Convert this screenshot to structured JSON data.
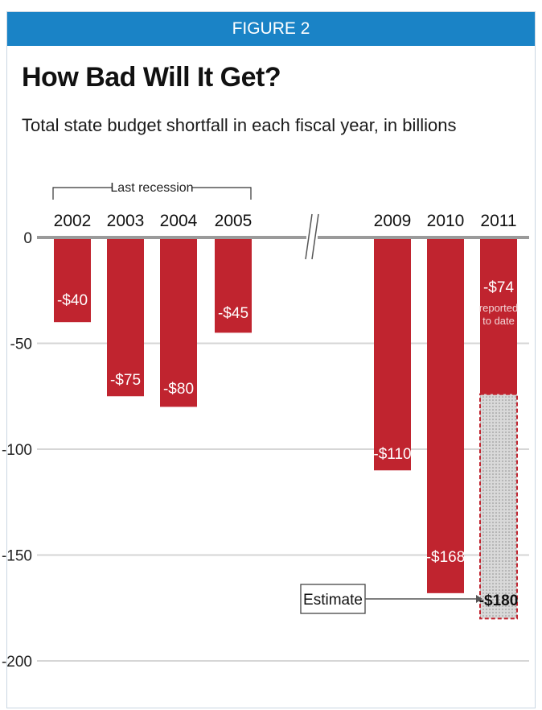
{
  "banner": {
    "label": "FIGURE 2"
  },
  "title": "How Bad Will It Get?",
  "subtitle": "Total state budget shortfall in each fiscal year, in billions",
  "bracket_label": "Last recession",
  "estimate_label": "Estimate",
  "colors": {
    "bar": "#c0242f",
    "banner": "#1a83c6",
    "estimate_fill": "#d9d9d9",
    "estimate_border": "#c0242f",
    "grid": "#d6d6d6",
    "baseline": "#9a9a9a"
  },
  "chart_data": {
    "type": "bar",
    "title": "How Bad Will It Get?",
    "subtitle": "Total state budget shortfall in each fiscal year, in billions",
    "categories": [
      "2002",
      "2003",
      "2004",
      "2005",
      "2009",
      "2010",
      "2011"
    ],
    "values": [
      -40,
      -75,
      -80,
      -45,
      -110,
      -168,
      -74
    ],
    "data_labels": [
      "-$40",
      "-$75",
      "-$80",
      "-$45",
      "-$110",
      "-$168",
      "-$74"
    ],
    "bar_notes": [
      {
        "category": "2011",
        "text_lines": [
          "reported",
          "to date"
        ]
      }
    ],
    "estimate": {
      "category": "2011",
      "value": -180,
      "label": "-$180"
    },
    "axis_break_between": [
      "2005",
      "2009"
    ],
    "yticks": [
      0,
      -50,
      -100,
      -150,
      -200
    ],
    "ytick_labels": [
      "0",
      "-50",
      "-100",
      "-150",
      "-200"
    ],
    "ylim": [
      -200,
      0
    ],
    "grid": true,
    "xlabel": "",
    "ylabel": ""
  }
}
